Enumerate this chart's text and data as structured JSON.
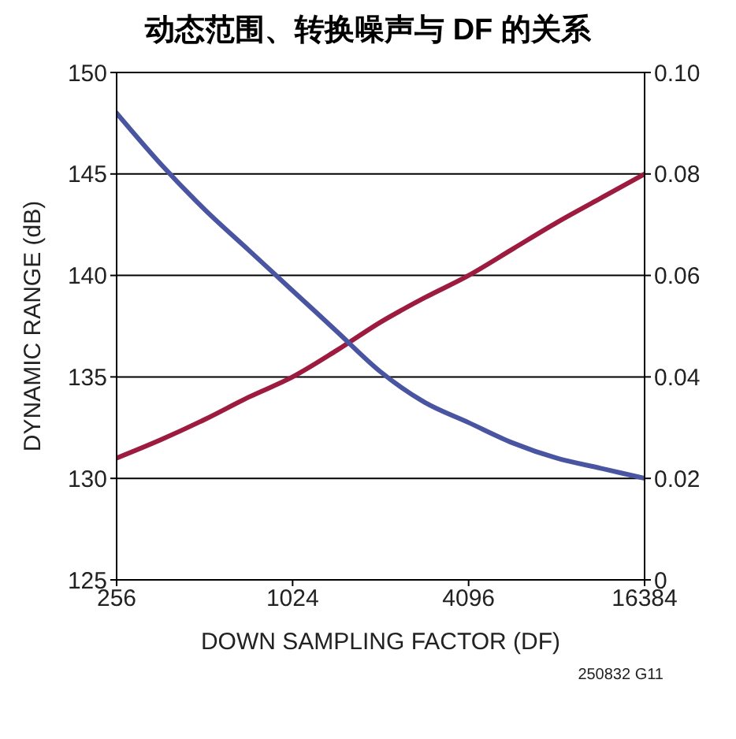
{
  "chart_data": {
    "type": "line",
    "title": "动态范围、转换噪声与 DF 的关系",
    "xlabel": "DOWN SAMPLING FACTOR (DF)",
    "ylabel": "DYNAMIC RANGE (dB)",
    "x": [
      256,
      362,
      512,
      724,
      1024,
      1448,
      2048,
      2896,
      4096,
      5793,
      8192,
      11585,
      16384
    ],
    "series": [
      {
        "color": "#9c1b3f",
        "values": [
          131,
          131.9,
          132.9,
          134.0,
          135.0,
          136.3,
          137.7,
          138.9,
          140.0,
          141.3,
          142.6,
          143.8,
          145
        ]
      },
      {
        "color": "#4a55a2",
        "axis": "y2",
        "values": [
          0.092,
          0.082,
          0.073,
          0.065,
          0.057,
          0.049,
          0.041,
          0.035,
          0.031,
          0.027,
          0.024,
          0.022,
          0.02
        ]
      }
    ],
    "log": "x",
    "xlim": [
      256,
      16384
    ],
    "xticks": [
      256,
      1024,
      4096,
      16384
    ],
    "ylim": [
      125,
      150
    ],
    "yticks": [
      125,
      130,
      135,
      140,
      145,
      150
    ],
    "y2lim": [
      0,
      0.1
    ],
    "y2ticks": [
      0,
      {
        "value": 0.02,
        "label": "0.02"
      },
      {
        "value": 0.04,
        "label": "0.04"
      },
      {
        "value": 0.06,
        "label": "0.06"
      },
      {
        "value": 0.08,
        "label": "0.08"
      },
      {
        "value": 0.1,
        "label": "0.10"
      }
    ],
    "grid": "y",
    "legend": false,
    "marker": "none",
    "line_style": "solid",
    "annotations": [
      "250832 G11"
    ]
  }
}
